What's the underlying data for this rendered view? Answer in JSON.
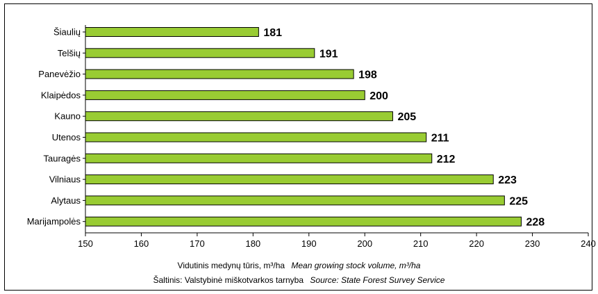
{
  "chart_data": {
    "type": "bar",
    "orientation": "horizontal",
    "categories": [
      "Šiaulių",
      "Telšių",
      "Panevėžio",
      "Klaipėdos",
      "Kauno",
      "Utenos",
      "Tauragės",
      "Vilniaus",
      "Alytaus",
      "Marijampolės"
    ],
    "values": [
      181,
      191,
      198,
      200,
      205,
      211,
      212,
      223,
      225,
      228
    ],
    "xlim": [
      150,
      240
    ],
    "xticks": [
      150,
      160,
      170,
      180,
      190,
      200,
      210,
      220,
      230,
      240
    ],
    "grid": false,
    "bar_color": "#99cc33",
    "bar_edge_color": "#000000"
  },
  "caption": {
    "xlabel_lt": "Vidutinis medynų tūris, m³/ha",
    "xlabel_en": "Mean growing stock volume, m³/ha",
    "source_lt": "Šaltinis: Valstybinė miškotvarkos tarnyba",
    "source_en": "Source: State Forest Survey Service"
  }
}
